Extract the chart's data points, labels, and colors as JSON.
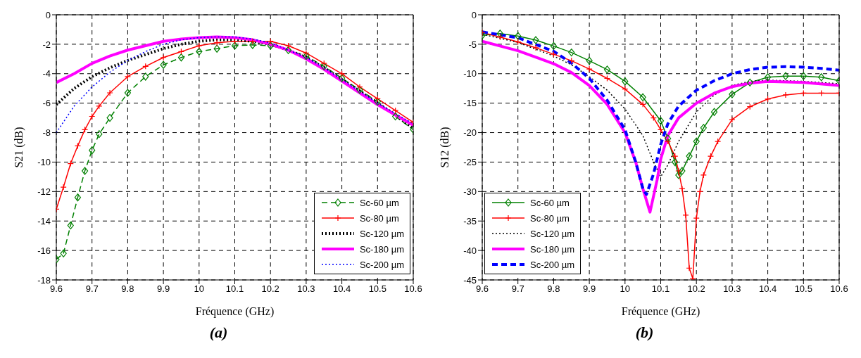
{
  "chart_data": [
    {
      "type": "line",
      "xlabel": "Fréquence (GHz)",
      "ylabel": "S21 (dB)",
      "annotations": [
        "(a)"
      ],
      "xlim": [
        9.6,
        10.6
      ],
      "xticks": [
        9.6,
        9.7,
        9.8,
        9.9,
        10,
        10.1,
        10.2,
        10.3,
        10.4,
        10.5,
        10.6
      ],
      "ylim": [
        -18,
        0
      ],
      "yticks": [
        -18,
        -16,
        -14,
        -12,
        -10,
        -8,
        -6,
        -4,
        -2,
        0
      ],
      "grid": true,
      "legend": "bottom right",
      "series": [
        {
          "name": "Sc-60 µm",
          "color": "#008000",
          "line_style": "dashed",
          "marker": "diamond",
          "x": [
            9.6,
            9.62,
            9.64,
            9.66,
            9.68,
            9.7,
            9.72,
            9.75,
            9.8,
            9.85,
            9.9,
            9.95,
            10.0,
            10.05,
            10.1,
            10.15,
            10.2,
            10.25,
            10.3,
            10.35,
            10.4,
            10.45,
            10.5,
            10.55,
            10.6
          ],
          "values": [
            -16.6,
            -16.2,
            -14.3,
            -12.4,
            -10.6,
            -9.2,
            -8.1,
            -7.0,
            -5.3,
            -4.2,
            -3.4,
            -2.9,
            -2.5,
            -2.3,
            -2.1,
            -2.05,
            -2.1,
            -2.4,
            -2.8,
            -3.5,
            -4.3,
            -5.1,
            -5.9,
            -6.9,
            -7.8
          ]
        },
        {
          "name": "Sc-80 µm",
          "color": "#ff0000",
          "line_style": "solid",
          "marker": "cross",
          "x": [
            9.6,
            9.62,
            9.64,
            9.66,
            9.68,
            9.7,
            9.72,
            9.75,
            9.8,
            9.85,
            9.9,
            9.95,
            10.0,
            10.05,
            10.1,
            10.15,
            10.2,
            10.25,
            10.3,
            10.35,
            10.4,
            10.45,
            10.5,
            10.55,
            10.6
          ],
          "values": [
            -13.2,
            -11.7,
            -10.1,
            -8.9,
            -7.8,
            -6.9,
            -6.2,
            -5.3,
            -4.2,
            -3.5,
            -2.9,
            -2.5,
            -2.1,
            -1.9,
            -1.8,
            -1.8,
            -1.8,
            -2.1,
            -2.6,
            -3.3,
            -4.0,
            -4.9,
            -5.7,
            -6.5,
            -7.3
          ]
        },
        {
          "name": "Sc-120 µm",
          "color": "#000000",
          "line_style": "dotted",
          "marker": "none",
          "x": [
            9.6,
            9.65,
            9.7,
            9.75,
            9.8,
            9.85,
            9.9,
            9.95,
            10.0,
            10.05,
            10.1,
            10.15,
            10.2,
            10.25,
            10.3,
            10.35,
            10.4,
            10.45,
            10.5,
            10.55,
            10.6
          ],
          "values": [
            -6.1,
            -5.0,
            -4.2,
            -3.6,
            -3.1,
            -2.7,
            -2.3,
            -2.0,
            -1.8,
            -1.7,
            -1.7,
            -1.8,
            -2.0,
            -2.4,
            -2.9,
            -3.6,
            -4.4,
            -5.2,
            -6.0,
            -6.8,
            -7.7
          ]
        },
        {
          "name": "Sc-180 µm",
          "color": "#ff00ff",
          "line_style": "solid",
          "marker": "none",
          "x": [
            9.6,
            9.65,
            9.7,
            9.75,
            9.8,
            9.85,
            9.9,
            9.95,
            10.0,
            10.05,
            10.1,
            10.15,
            10.2,
            10.25,
            10.3,
            10.35,
            10.4,
            10.45,
            10.5,
            10.55,
            10.6
          ],
          "values": [
            -4.6,
            -4.0,
            -3.3,
            -2.8,
            -2.4,
            -2.1,
            -1.8,
            -1.65,
            -1.55,
            -1.5,
            -1.55,
            -1.7,
            -2.0,
            -2.4,
            -3.0,
            -3.7,
            -4.5,
            -5.3,
            -6.1,
            -6.8,
            -7.5
          ]
        },
        {
          "name": "Sc-200 µm",
          "color": "#0000ff",
          "line_style": "dotted",
          "marker": "none",
          "x": [
            9.6,
            9.65,
            9.7,
            9.75,
            9.8,
            9.85,
            9.9,
            9.95,
            10.0,
            10.05,
            10.1,
            10.15,
            10.2,
            10.25,
            10.3,
            10.35,
            10.4,
            10.45,
            10.5,
            10.55,
            10.6
          ],
          "values": [
            -8.0,
            -6.2,
            -4.9,
            -3.9,
            -3.1,
            -2.5,
            -2.0,
            -1.7,
            -1.55,
            -1.5,
            -1.5,
            -1.65,
            -1.9,
            -2.4,
            -2.9,
            -3.6,
            -4.4,
            -5.2,
            -6.0,
            -6.7,
            -7.4
          ]
        }
      ]
    },
    {
      "type": "line",
      "xlabel": "Fréquence (GHz)",
      "ylabel": "S12 (dB)",
      "annotations": [
        "(b)"
      ],
      "xlim": [
        9.6,
        10.6
      ],
      "xticks": [
        9.6,
        9.7,
        9.8,
        9.9,
        10,
        10.1,
        10.2,
        10.3,
        10.4,
        10.5,
        10.6
      ],
      "ylim": [
        -45,
        0
      ],
      "yticks": [
        -45,
        -40,
        -35,
        -30,
        -25,
        -20,
        -15,
        -10,
        -5,
        0
      ],
      "grid": true,
      "legend": "bottom left",
      "series": [
        {
          "name": "Sc-60 µm",
          "color": "#008000",
          "line_style": "solid",
          "marker": "diamond",
          "x": [
            9.6,
            9.65,
            9.7,
            9.75,
            9.8,
            9.85,
            9.9,
            9.95,
            10.0,
            10.05,
            10.1,
            10.12,
            10.14,
            10.15,
            10.16,
            10.18,
            10.2,
            10.22,
            10.25,
            10.3,
            10.35,
            10.4,
            10.45,
            10.5,
            10.55,
            10.6
          ],
          "values": [
            -3.5,
            -3.2,
            -3.6,
            -4.3,
            -5.3,
            -6.4,
            -7.8,
            -9.3,
            -11.3,
            -14.0,
            -18.0,
            -21,
            -25,
            -27.2,
            -26.5,
            -24,
            -21.5,
            -19.2,
            -16.5,
            -13.5,
            -11.5,
            -10.6,
            -10.4,
            -10.4,
            -10.6,
            -11.2
          ]
        },
        {
          "name": "Sc-80 µm",
          "color": "#ff0000",
          "line_style": "solid",
          "marker": "cross",
          "x": [
            9.6,
            9.65,
            9.7,
            9.75,
            9.8,
            9.85,
            9.9,
            9.95,
            10.0,
            10.05,
            10.08,
            10.1,
            10.12,
            10.14,
            10.15,
            10.16,
            10.17,
            10.18,
            10.19,
            10.2,
            10.21,
            10.22,
            10.24,
            10.26,
            10.3,
            10.35,
            10.4,
            10.45,
            10.5,
            10.55,
            10.6
          ],
          "values": [
            -3.0,
            -3.8,
            -4.6,
            -5.6,
            -6.7,
            -7.8,
            -9.2,
            -10.8,
            -12.6,
            -15.2,
            -17.5,
            -19.5,
            -21.5,
            -24,
            -26.5,
            -29.5,
            -34,
            -43,
            -44.8,
            -34.5,
            -30,
            -27.2,
            -24,
            -21.5,
            -17.8,
            -15.6,
            -14.3,
            -13.6,
            -13.3,
            -13.3,
            -13.3
          ]
        },
        {
          "name": "Sc-120 µm",
          "color": "#000000",
          "line_style": "dotted",
          "marker": "none",
          "x": [
            9.6,
            9.7,
            9.8,
            9.85,
            9.9,
            9.95,
            10.0,
            10.05,
            10.08,
            10.1,
            10.12,
            10.15,
            10.2,
            10.25,
            10.3,
            10.35,
            10.4,
            10.5,
            10.6
          ],
          "values": [
            -3.3,
            -4.7,
            -7.0,
            -8.5,
            -10.5,
            -12.8,
            -16.0,
            -20.5,
            -25,
            -27.5,
            -25.5,
            -21.5,
            -16.5,
            -13.6,
            -12.0,
            -11.3,
            -11.1,
            -11.3,
            -11.7
          ]
        },
        {
          "name": "Sc-180 µm",
          "color": "#ff00ff",
          "line_style": "solid",
          "marker": "none",
          "x": [
            9.6,
            9.7,
            9.8,
            9.85,
            9.9,
            9.95,
            10.0,
            10.03,
            10.05,
            10.07,
            10.09,
            10.1,
            10.12,
            10.15,
            10.2,
            10.25,
            10.3,
            10.35,
            10.4,
            10.5,
            10.6
          ],
          "values": [
            -4.5,
            -6.1,
            -8.3,
            -9.8,
            -12,
            -15.2,
            -20,
            -25,
            -29.5,
            -33.5,
            -28,
            -24.5,
            -20.5,
            -17.5,
            -15,
            -13.3,
            -12.2,
            -11.6,
            -11.3,
            -11.5,
            -12.0
          ]
        },
        {
          "name": "Sc-200 µm",
          "color": "#0000ff",
          "line_style": "dashed",
          "marker": "none",
          "x": [
            9.6,
            9.7,
            9.8,
            9.85,
            9.9,
            9.95,
            10.0,
            10.03,
            10.05,
            10.06,
            10.08,
            10.1,
            10.12,
            10.15,
            10.2,
            10.25,
            10.3,
            10.35,
            10.4,
            10.45,
            10.5,
            10.55,
            10.6
          ],
          "values": [
            -2.9,
            -3.9,
            -6.2,
            -8.2,
            -10.8,
            -14.5,
            -19.5,
            -25,
            -29.5,
            -30.5,
            -27,
            -22,
            -18.5,
            -15.5,
            -12.8,
            -11.2,
            -10.0,
            -9.3,
            -8.9,
            -8.8,
            -8.9,
            -9.1,
            -9.4
          ]
        }
      ]
    }
  ]
}
